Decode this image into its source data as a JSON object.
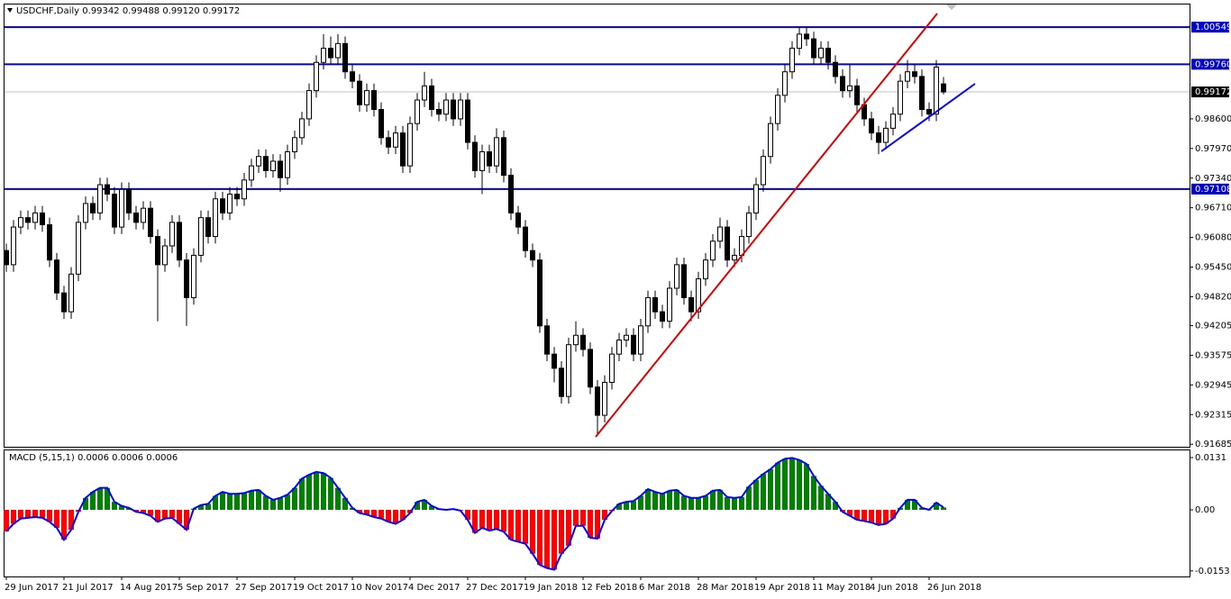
{
  "chart_data": [
    {
      "type": "candlestick",
      "title": "USDCHF,Daily 0.99342 0.99488 0.99120 0.99172",
      "categories": [
        "29 Jun 2017",
        null,
        null,
        null,
        null,
        null,
        null,
        null,
        "21 Jul 2017",
        null,
        null,
        null,
        null,
        null,
        null,
        null,
        "14 Aug 2017",
        null,
        null,
        null,
        null,
        null,
        null,
        null,
        "5 Sep 2017",
        null,
        null,
        null,
        null,
        null,
        null,
        null,
        "27 Sep 2017",
        null,
        null,
        null,
        null,
        null,
        null,
        null,
        "19 Oct 2017",
        null,
        null,
        null,
        null,
        null,
        null,
        null,
        "10 Nov 2017",
        null,
        null,
        null,
        null,
        null,
        null,
        null,
        "4 Dec 2017",
        null,
        null,
        null,
        null,
        null,
        null,
        null,
        "27 Dec 2017",
        null,
        null,
        null,
        null,
        null,
        null,
        null,
        "19 Jan 2018",
        null,
        null,
        null,
        null,
        null,
        null,
        null,
        "12 Feb 2018",
        null,
        null,
        null,
        null,
        null,
        null,
        null,
        "6 Mar 2018",
        null,
        null,
        null,
        null,
        null,
        null,
        null,
        "28 Mar 2018",
        null,
        null,
        null,
        null,
        null,
        null,
        null,
        "19 Apr 2018",
        null,
        null,
        null,
        null,
        null,
        null,
        null,
        "11 May 2018",
        null,
        null,
        null,
        null,
        null,
        null,
        null,
        "4 Jun 2018",
        null,
        null,
        null,
        null,
        null,
        null,
        null,
        "26 Jun 2018",
        null,
        null
      ],
      "open": [
        0.958,
        0.955,
        0.963,
        0.965,
        0.964,
        0.966,
        0.9635,
        0.956,
        0.949,
        0.945,
        0.953,
        0.964,
        0.968,
        0.966,
        0.972,
        0.97,
        0.963,
        0.971,
        0.966,
        0.964,
        0.967,
        0.961,
        0.955,
        0.959,
        0.964,
        0.956,
        0.948,
        0.957,
        0.965,
        0.961,
        0.969,
        0.966,
        0.97,
        0.969,
        0.973,
        0.976,
        0.978,
        0.975,
        0.977,
        0.9735,
        0.979,
        0.982,
        0.986,
        0.992,
        0.998,
        1.001,
        0.999,
        1.002,
        0.996,
        0.994,
        0.989,
        0.992,
        0.988,
        0.982,
        0.98,
        0.983,
        0.976,
        0.985,
        0.99,
        0.993,
        0.988,
        0.987,
        0.99,
        0.986,
        0.99,
        0.981,
        0.975,
        0.979,
        0.976,
        0.982,
        0.974,
        0.966,
        0.963,
        0.958,
        0.956,
        0.942,
        0.936,
        0.933,
        0.927,
        0.938,
        0.94,
        0.937,
        0.929,
        0.923,
        0.93,
        0.936,
        0.939,
        0.94,
        0.936,
        0.942,
        0.948,
        0.945,
        0.943,
        0.95,
        0.955,
        0.948,
        0.945,
        0.952,
        0.956,
        0.96,
        0.963,
        0.956,
        0.957,
        0.961,
        0.966,
        0.972,
        0.978,
        0.985,
        0.991,
        0.996,
        1.001,
        1.004,
        1.003,
        0.999,
        1.001,
        0.998,
        0.995,
        0.992,
        0.993,
        0.989,
        0.986,
        0.983,
        0.981,
        0.984,
        0.987,
        0.994,
        0.996,
        0.995,
        0.988,
        0.987,
        0.99342
      ],
      "high": [
        0.9595,
        0.9645,
        0.9665,
        0.9665,
        0.9675,
        0.9675,
        0.965,
        0.9575,
        0.9505,
        0.9545,
        0.9655,
        0.9695,
        0.9695,
        0.9735,
        0.9735,
        0.9715,
        0.9725,
        0.9725,
        0.9675,
        0.9685,
        0.9685,
        0.9625,
        0.9605,
        0.9655,
        0.9655,
        0.9575,
        0.9585,
        0.9665,
        0.9665,
        0.9705,
        0.9705,
        0.9715,
        0.9715,
        0.9745,
        0.9775,
        0.9795,
        0.9795,
        0.9785,
        0.9785,
        0.9805,
        0.9835,
        0.9875,
        0.9935,
        0.9995,
        1.004,
        1.0035,
        1.004,
        1.0035,
        0.9975,
        0.9955,
        0.9935,
        0.9935,
        0.9895,
        0.9835,
        0.9845,
        0.9845,
        0.9865,
        0.9915,
        0.996,
        0.9945,
        0.9895,
        0.9915,
        0.9915,
        0.9915,
        0.9915,
        0.9825,
        0.9805,
        0.9805,
        0.984,
        0.9835,
        0.9755,
        0.9675,
        0.9645,
        0.9595,
        0.9575,
        0.9435,
        0.9375,
        0.9345,
        0.9395,
        0.943,
        0.9415,
        0.9385,
        0.9305,
        0.9315,
        0.9375,
        0.9405,
        0.9415,
        0.9415,
        0.9435,
        0.9495,
        0.9495,
        0.9465,
        0.9515,
        0.9565,
        0.9565,
        0.9495,
        0.9535,
        0.9575,
        0.9615,
        0.965,
        0.9645,
        0.9585,
        0.9625,
        0.9675,
        0.9735,
        0.9795,
        0.9865,
        0.9925,
        0.9975,
        1.0025,
        1.0056,
        1.0055,
        1.0045,
        1.0025,
        1.0025,
        0.9995,
        0.9965,
        0.9975,
        0.9945,
        0.9905,
        0.9875,
        0.9845,
        0.9855,
        0.9885,
        0.9955,
        0.9985,
        0.9975,
        0.9965,
        0.9895,
        0.9985,
        0.99488
      ],
      "low": [
        0.9535,
        0.9535,
        0.9615,
        0.9625,
        0.9625,
        0.962,
        0.9545,
        0.9475,
        0.9435,
        0.9435,
        0.9515,
        0.9625,
        0.9645,
        0.9645,
        0.9685,
        0.9615,
        0.9615,
        0.9645,
        0.9625,
        0.9625,
        0.9595,
        0.943,
        0.9535,
        0.9575,
        0.9545,
        0.942,
        0.9465,
        0.9555,
        0.9595,
        0.9595,
        0.9645,
        0.9645,
        0.9675,
        0.9675,
        0.9715,
        0.9745,
        0.9735,
        0.9735,
        0.9705,
        0.972,
        0.9775,
        0.9805,
        0.9845,
        0.9905,
        0.9965,
        0.9975,
        0.9975,
        0.9945,
        0.9925,
        0.9875,
        0.9875,
        0.9865,
        0.9805,
        0.9785,
        0.9785,
        0.9745,
        0.9745,
        0.9835,
        0.9885,
        0.9865,
        0.9855,
        0.9855,
        0.9845,
        0.9845,
        0.9795,
        0.9735,
        0.97,
        0.9745,
        0.9745,
        0.9725,
        0.9645,
        0.9615,
        0.9565,
        0.9545,
        0.9405,
        0.9345,
        0.93,
        0.9255,
        0.9255,
        0.9365,
        0.9355,
        0.9275,
        0.919,
        0.9215,
        0.9285,
        0.9345,
        0.9375,
        0.9345,
        0.9345,
        0.9405,
        0.9435,
        0.9415,
        0.9415,
        0.9485,
        0.9465,
        0.943,
        0.9435,
        0.9505,
        0.9545,
        0.9585,
        0.9545,
        0.9545,
        0.9555,
        0.9595,
        0.9645,
        0.9705,
        0.9765,
        0.9835,
        0.9895,
        0.9945,
        0.9995,
        1.0015,
        0.9975,
        0.9975,
        0.9965,
        0.9935,
        0.9905,
        0.9905,
        0.9875,
        0.9845,
        0.9815,
        0.9785,
        0.9795,
        0.9825,
        0.9855,
        0.9925,
        0.9935,
        0.9865,
        0.9855,
        0.9855,
        0.9912
      ],
      "close": [
        0.955,
        0.963,
        0.965,
        0.964,
        0.966,
        0.9635,
        0.956,
        0.949,
        0.945,
        0.953,
        0.964,
        0.968,
        0.966,
        0.972,
        0.97,
        0.963,
        0.971,
        0.966,
        0.964,
        0.967,
        0.961,
        0.955,
        0.959,
        0.964,
        0.956,
        0.948,
        0.957,
        0.965,
        0.961,
        0.969,
        0.966,
        0.97,
        0.969,
        0.973,
        0.976,
        0.978,
        0.975,
        0.977,
        0.9735,
        0.979,
        0.982,
        0.986,
        0.992,
        0.998,
        1.001,
        0.999,
        1.002,
        0.996,
        0.994,
        0.989,
        0.992,
        0.988,
        0.982,
        0.98,
        0.983,
        0.976,
        0.985,
        0.99,
        0.993,
        0.988,
        0.987,
        0.99,
        0.986,
        0.99,
        0.981,
        0.975,
        0.979,
        0.976,
        0.982,
        0.974,
        0.966,
        0.963,
        0.958,
        0.956,
        0.942,
        0.936,
        0.933,
        0.927,
        0.938,
        0.94,
        0.937,
        0.929,
        0.923,
        0.93,
        0.936,
        0.939,
        0.94,
        0.936,
        0.942,
        0.948,
        0.945,
        0.943,
        0.95,
        0.955,
        0.948,
        0.945,
        0.952,
        0.956,
        0.96,
        0.963,
        0.956,
        0.957,
        0.961,
        0.966,
        0.972,
        0.978,
        0.985,
        0.991,
        0.996,
        1.001,
        1.004,
        1.003,
        0.999,
        1.001,
        0.998,
        0.995,
        0.992,
        0.993,
        0.989,
        0.986,
        0.983,
        0.981,
        0.984,
        0.987,
        0.994,
        0.996,
        0.995,
        0.988,
        0.987,
        0.997,
        0.99172
      ],
      "up_color": "#ffffff",
      "down_color": "#000000",
      "wick_color": "#000000",
      "ylim": [
        0.9165,
        1.0103
      ],
      "yticks": [
        {
          "value": 0.986,
          "label": "0.98600"
        },
        {
          "value": 0.9797,
          "label": "0.97970"
        },
        {
          "value": 0.9734,
          "label": "0.97340"
        },
        {
          "value": 0.9671,
          "label": "0.96710"
        },
        {
          "value": 0.9608,
          "label": "0.96080"
        },
        {
          "value": 0.9545,
          "label": "0.95450"
        },
        {
          "value": 0.9482,
          "label": "0.94820"
        },
        0.94205,
        0.93575,
        0.92945,
        0.92315,
        0.91685
      ],
      "hlines": [
        1.00549,
        {
          "value": 0.9976,
          "label": "0.99760"
        },
        0.97108
      ],
      "hline_color": "#0000cd",
      "bid": 0.99172,
      "bid_color": "#c0c0c0"
    },
    {
      "type": "histogram",
      "title": "MACD (5,15,1) 0.0006 0.0006 0.0006",
      "values": [
        -0.0054,
        -0.0035,
        -0.0022,
        -0.002,
        -0.0018,
        -0.002,
        -0.003,
        -0.0045,
        -0.0075,
        -0.005,
        -0.0005,
        0.003,
        0.0045,
        0.0055,
        0.0055,
        0.002,
        0.001,
        0.0005,
        -0.0005,
        -0.0008,
        -0.0015,
        -0.003,
        -0.0022,
        -0.002,
        -0.0035,
        -0.005,
        0.0003,
        0.0012,
        0.0015,
        0.0035,
        0.0045,
        0.004,
        0.004,
        0.0042,
        0.0048,
        0.005,
        0.0035,
        0.0025,
        0.003,
        0.0038,
        0.0055,
        0.0078,
        0.0088,
        0.0095,
        0.0092,
        0.008,
        0.0055,
        0.003,
        0.0005,
        -0.0008,
        -0.0012,
        -0.0018,
        -0.0022,
        -0.003,
        -0.0035,
        -0.0025,
        -0.0008,
        0.002,
        0.0025,
        0.001,
        0.0002,
        0,
        0.0002,
        -0.0002,
        -0.0025,
        -0.0058,
        -0.0045,
        -0.0052,
        -0.0048,
        -0.0055,
        -0.0075,
        -0.008,
        -0.0085,
        -0.011,
        -0.0138,
        -0.0146,
        -0.015,
        -0.011,
        -0.009,
        -0.004,
        -0.004,
        -0.007,
        -0.0072,
        -0.0025,
        -0.0003,
        0.0015,
        0.002,
        0.0022,
        0.0035,
        0.0052,
        0.0045,
        0.004,
        0.0048,
        0.005,
        0.0035,
        0.003,
        0.003,
        0.0035,
        0.0048,
        0.005,
        0.0032,
        0.003,
        0.0032,
        0.0058,
        0.0075,
        0.009,
        0.0102,
        0.0118,
        0.0128,
        0.013,
        0.0125,
        0.0115,
        0.0085,
        0.006,
        0.004,
        0.002,
        -0.0005,
        -0.0015,
        -0.0025,
        -0.0028,
        -0.0032,
        -0.0038,
        -0.0035,
        -0.0022,
        0.0005,
        0.0025,
        0.0025,
        0.0005,
        0,
        0.0018,
        0.0006
      ],
      "positive_color": "#008000",
      "negative_color": "#ff0000",
      "line_color": "#0000ff",
      "ylim": [
        -0.0167,
        0.0149
      ],
      "yticks": [
        0.0131,
        {
          "value": 0,
          "label": "0.00"
        },
        -0.0153
      ]
    }
  ]
}
